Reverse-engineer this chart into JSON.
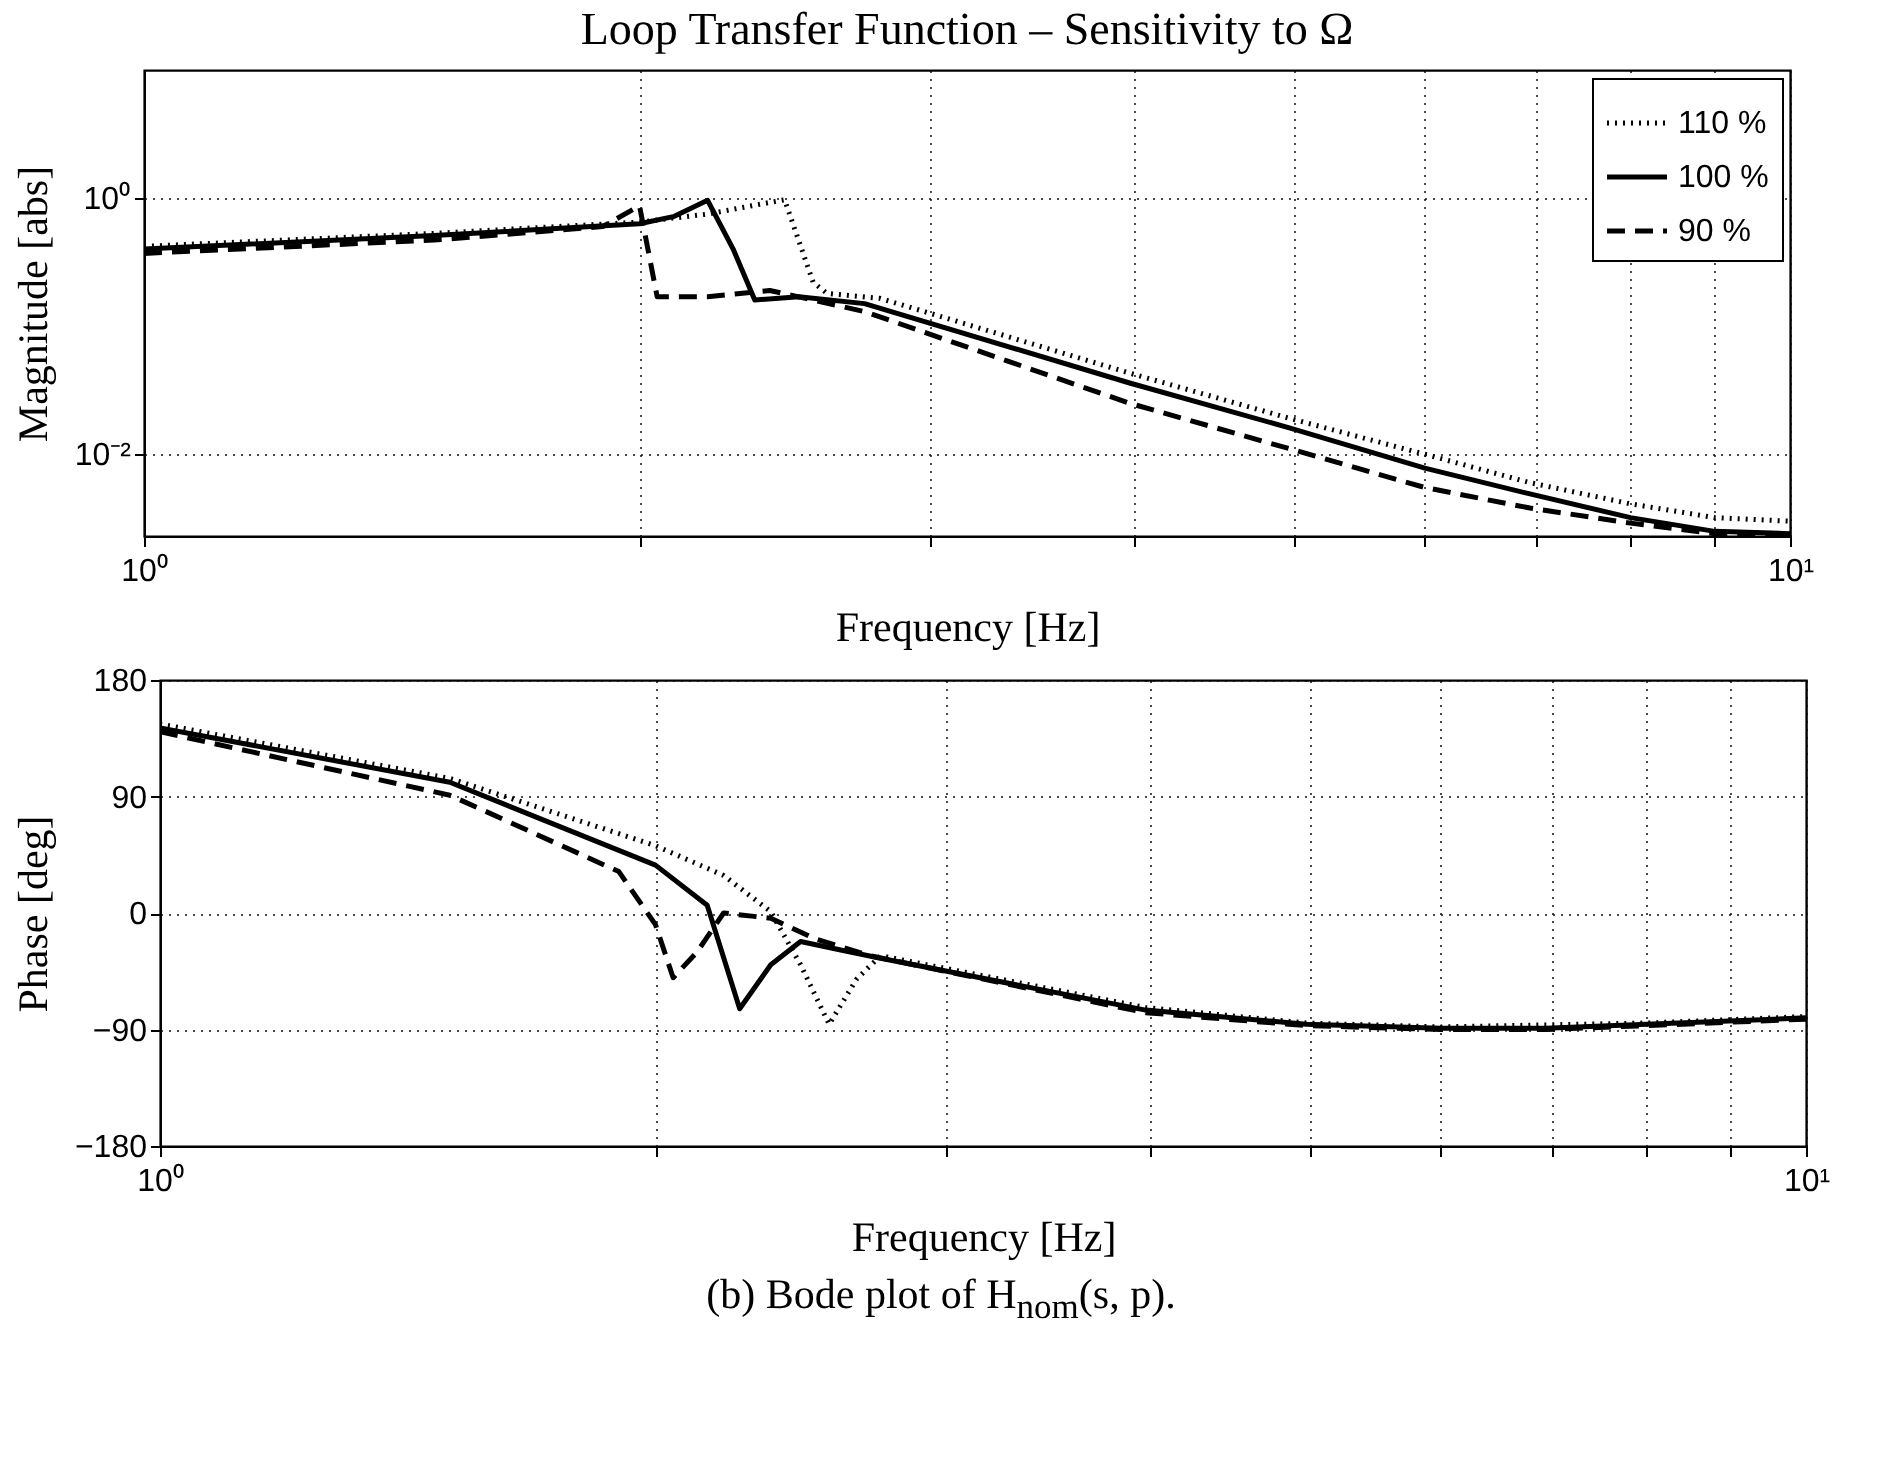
{
  "chart_data": [
    {
      "type": "line",
      "title": "Loop Transfer Function – Sensitivity to Ω",
      "xlabel": "Frequency [Hz]",
      "ylabel": "Magnitude [abs]",
      "log": "xy",
      "grid": true,
      "legend": "top right",
      "xlim": [
        1,
        10
      ],
      "xticks": [
        {
          "value": 1,
          "label": "10⁰"
        },
        {
          "value": 2,
          "label": null
        },
        {
          "value": 3,
          "label": null
        },
        {
          "value": 4,
          "label": null
        },
        {
          "value": 5,
          "label": null
        },
        {
          "value": 6,
          "label": null
        },
        {
          "value": 7,
          "label": null
        },
        {
          "value": 8,
          "label": null
        },
        {
          "value": 9,
          "label": null
        },
        {
          "value": 10,
          "label": "10¹"
        }
      ],
      "ylim": [
        0.0023,
        10
      ],
      "yticks": [
        {
          "value": 0.01,
          "label": "10⁻²"
        },
        {
          "value": 1,
          "label": "10⁰"
        }
      ],
      "series": [
        {
          "name": "110 %",
          "color": "#000000",
          "line_style": "dotted",
          "x": [
            1,
            1.5,
            2,
            2.2,
            2.35,
            2.45,
            2.55,
            2.6,
            2.8,
            3.97,
            4.97,
            6,
            6.95,
            8,
            9,
            10
          ],
          "values": [
            0.42,
            0.53,
            0.65,
            0.75,
            0.88,
            0.97,
            0.22,
            0.18,
            0.165,
            0.043,
            0.019,
            0.01,
            0.006,
            0.0041,
            0.0032,
            0.003
          ]
        },
        {
          "name": "100 %",
          "color": "#000000",
          "line_style": "solid",
          "x": [
            1,
            1.5,
            2,
            2.1,
            2.2,
            2.28,
            2.35,
            2.5,
            2.74,
            3.97,
            4.97,
            6,
            6.95,
            8,
            9,
            10
          ],
          "values": [
            0.4,
            0.51,
            0.63,
            0.72,
            0.96,
            0.4,
            0.16,
            0.17,
            0.15,
            0.036,
            0.016,
            0.0078,
            0.0049,
            0.0032,
            0.0025,
            0.0024
          ]
        },
        {
          "name": "90 %",
          "color": "#000000",
          "line_style": "dashed",
          "x": [
            1,
            1.5,
            1.9,
            2,
            2.05,
            2.2,
            2.4,
            2.74,
            3.97,
            4.97,
            6,
            6.95,
            8,
            9,
            10
          ],
          "values": [
            0.37,
            0.47,
            0.6,
            0.87,
            0.17,
            0.17,
            0.19,
            0.13,
            0.025,
            0.011,
            0.0055,
            0.0038,
            0.0029,
            0.0024,
            0.0024
          ]
        }
      ]
    },
    {
      "type": "line",
      "xlabel": "Frequency [Hz]",
      "ylabel": "Phase [deg]",
      "log": "x",
      "grid": true,
      "xlim": [
        1,
        10
      ],
      "xticks": [
        {
          "value": 1,
          "label": "10⁰"
        },
        {
          "value": 2,
          "label": null
        },
        {
          "value": 3,
          "label": null
        },
        {
          "value": 4,
          "label": null
        },
        {
          "value": 5,
          "label": null
        },
        {
          "value": 6,
          "label": null
        },
        {
          "value": 7,
          "label": null
        },
        {
          "value": 8,
          "label": null
        },
        {
          "value": 9,
          "label": null
        },
        {
          "value": 10,
          "label": "10¹"
        }
      ],
      "ylim": [
        -180,
        180
      ],
      "yticks": [
        -180,
        -90,
        0,
        90,
        180
      ],
      "annotations": [
        "(b) Bode plot of H$_{nom}$(s, p)."
      ],
      "series": [
        {
          "color": "#000000",
          "line_style": "dotted",
          "x": [
            1,
            1.5,
            2,
            2.2,
            2.35,
            2.45,
            2.55,
            2.65,
            2.74,
            3.97,
            4.97,
            6,
            8,
            10
          ],
          "values": [
            146,
            104,
            52,
            29,
            1,
            -40,
            -86,
            -51,
            -33,
            -73,
            -85,
            -88,
            -85,
            -80
          ]
        },
        {
          "color": "#000000",
          "line_style": "solid",
          "x": [
            1,
            1.5,
            2,
            2.15,
            2.25,
            2.35,
            2.45,
            2.6,
            2.74,
            3.97,
            4.97,
            6,
            6.95,
            8,
            10
          ],
          "values": [
            143,
            101,
            37,
            6,
            -74,
            -40,
            -22,
            -29,
            -35,
            -75,
            -86,
            -89,
            -89,
            -86,
            -81
          ]
        },
        {
          "color": "#000000",
          "line_style": "dashed",
          "x": [
            1,
            1.5,
            1.9,
            2,
            2.05,
            2.12,
            2.2,
            2.35,
            2.5,
            2.7,
            3.97,
            4.97,
            6,
            6.95,
            8,
            10
          ],
          "values": [
            140,
            91,
            32,
            -9,
            -50,
            -30,
            0,
            -4,
            -20,
            -33,
            -77,
            -87,
            -90,
            -90,
            -87,
            -82
          ]
        }
      ]
    }
  ]
}
